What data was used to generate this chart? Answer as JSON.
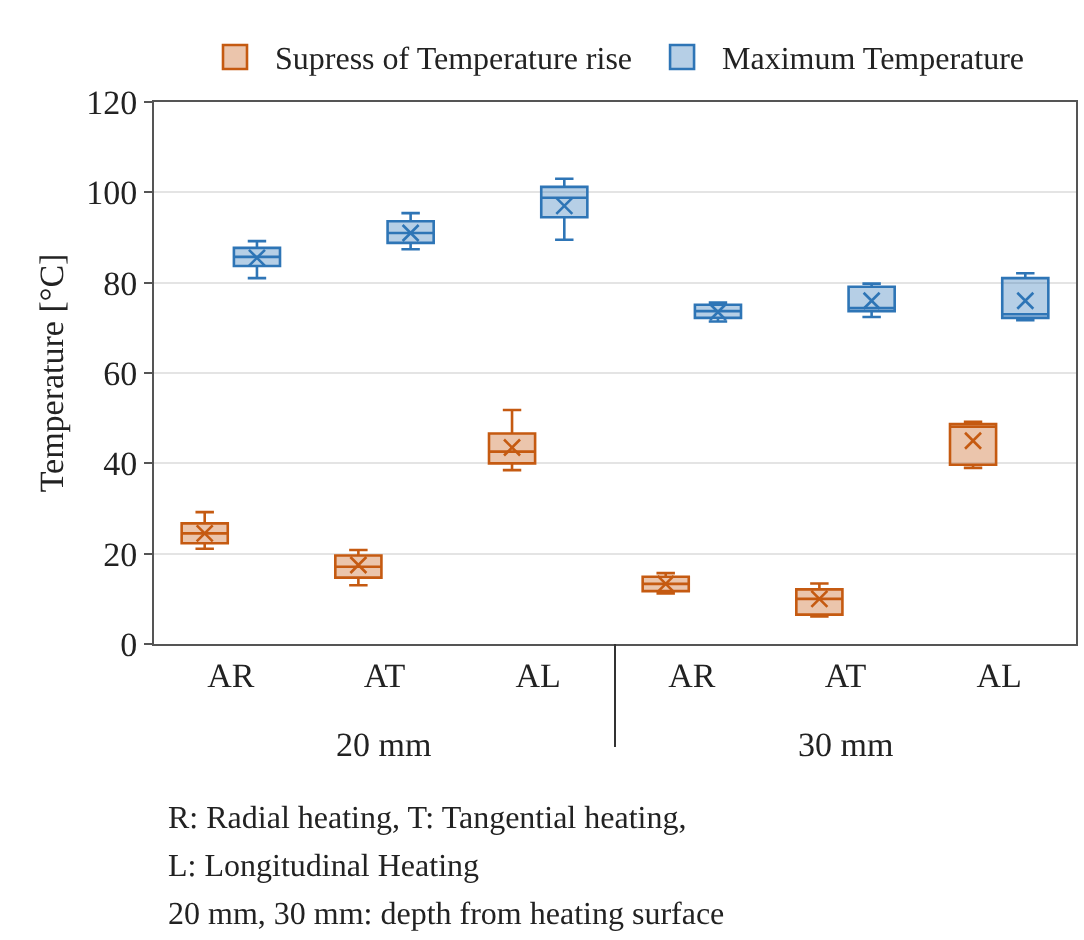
{
  "chart_data": {
    "type": "box",
    "ylabel": "Temperature [°C]",
    "categories": [
      "AR",
      "AT",
      "AL",
      "AR",
      "AT",
      "AL"
    ],
    "ylim": [
      0,
      120
    ],
    "yticks": [
      0,
      20,
      40,
      60,
      80,
      100,
      120
    ],
    "grid": "y",
    "legend": "top",
    "marker": "cross",
    "series": [
      {
        "name": "Supress of Temperature rise",
        "color": "#c55a11",
        "boxes": [
          {
            "low": 21.1,
            "q1": 22.3,
            "median": 24.5,
            "q3": 26.7,
            "high": 29.2,
            "mean": 24.5
          },
          {
            "low": 13,
            "q1": 14.7,
            "median": 17.1,
            "q3": 19.6,
            "high": 20.8,
            "mean": 17.5
          },
          {
            "low": 38.5,
            "q1": 40,
            "median": 42.6,
            "q3": 46.6,
            "high": 51.8,
            "mean": 43.5
          },
          {
            "low": 11.2,
            "q1": 11.7,
            "median": 13.3,
            "q3": 14.9,
            "high": 15.7,
            "mean": 13.3
          },
          {
            "low": 6.1,
            "q1": 6.5,
            "median": 10,
            "q3": 12.1,
            "high": 13.4,
            "mean": 10
          },
          {
            "low": 39,
            "q1": 39.7,
            "median": 48.1,
            "q3": 48.7,
            "high": 49.2,
            "mean": 45
          }
        ]
      },
      {
        "name": "Maximum Temperature",
        "color": "#2e75b6",
        "boxes": [
          {
            "low": 81,
            "q1": 83.7,
            "median": 85.7,
            "q3": 87.7,
            "high": 89.2,
            "mean": 85.5
          },
          {
            "low": 87.4,
            "q1": 88.8,
            "median": 91,
            "q3": 93.6,
            "high": 95.4,
            "mean": 91
          },
          {
            "low": 89.5,
            "q1": 94.5,
            "median": 98.8,
            "q3": 101.2,
            "high": 103,
            "mean": 97
          },
          {
            "low": 71.4,
            "q1": 72.2,
            "median": 73.7,
            "q3": 75.1,
            "high": 75.6,
            "mean": 73.5
          },
          {
            "low": 72.4,
            "q1": 73.7,
            "median": 74.4,
            "q3": 79.1,
            "high": 79.8,
            "mean": 76
          },
          {
            "low": 71.7,
            "q1": 72.2,
            "median": 73,
            "q3": 81,
            "high": 82.1,
            "mean": 76
          }
        ]
      }
    ],
    "annotations": [
      "20 mm",
      "30 mm",
      "R: Radial heating, T: Tangential heating,",
      "L: Longitudinal Heating",
      "20 mm, 30 mm: depth from heating surface"
    ]
  }
}
